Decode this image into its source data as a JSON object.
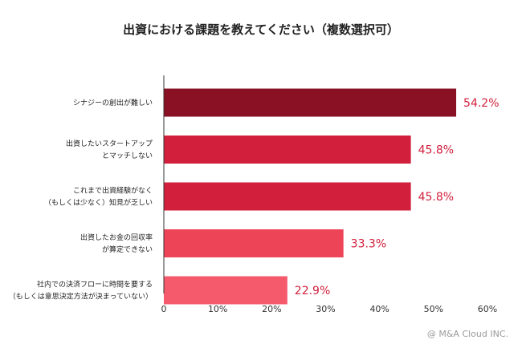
{
  "chart_data": {
    "type": "bar",
    "orientation": "horizontal",
    "title": "出資における課題を教えてください（複数選択可）",
    "categories": [
      [
        "シナジーの創出が難しい"
      ],
      [
        "出資したいスタートアップ",
        "とマッチしない"
      ],
      [
        "これまで出資経験がなく",
        "（もしくは少なく）知見が乏しい"
      ],
      [
        "出資したお金の回収率",
        "が算定できない"
      ],
      [
        "社内での決済フローに時間を要する",
        "（もしくは意思決定方法が決まっていない）"
      ]
    ],
    "values": [
      54.2,
      45.8,
      45.8,
      33.3,
      22.9
    ],
    "value_labels": [
      "54.2%",
      "45.8%",
      "45.8%",
      "33.3%",
      "22.9%"
    ],
    "bar_colors": [
      "#8a1024",
      "#d21f3c",
      "#d21f3c",
      "#ee4457",
      "#f45a6c"
    ],
    "value_label_color": "#d21f3c",
    "xlim": [
      0,
      60
    ],
    "xticks": [
      0,
      10,
      20,
      30,
      40,
      50,
      60
    ],
    "xtick_labels": [
      "0",
      "10%",
      "20%",
      "30%",
      "40%",
      "50%",
      "60%"
    ],
    "grid": false,
    "legend": "none"
  },
  "credit": "@ M&A Cloud INC."
}
